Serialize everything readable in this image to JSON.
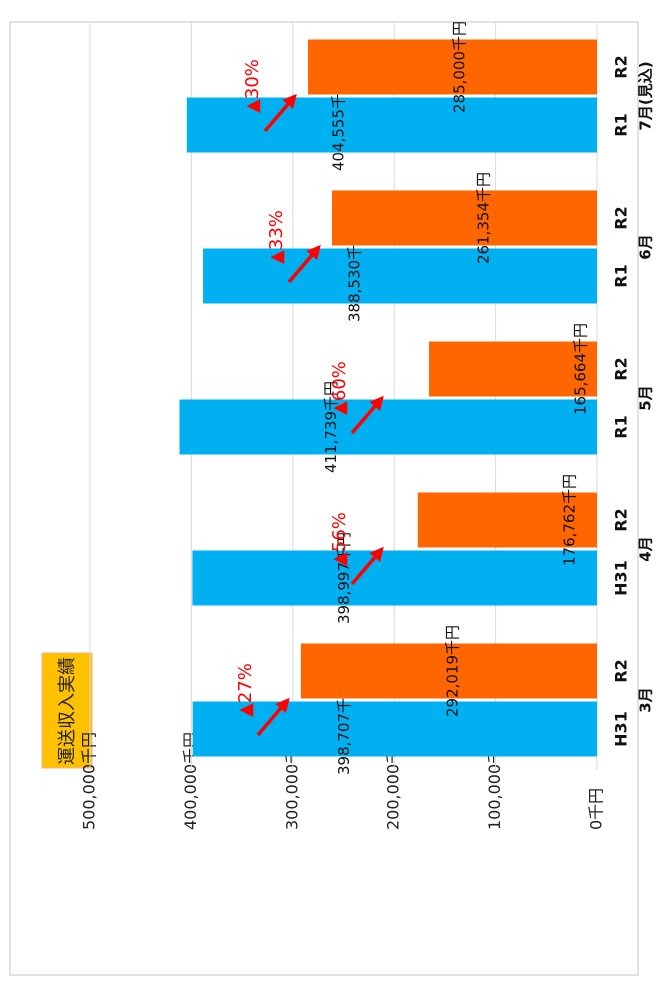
{
  "chart_data": {
    "type": "bar",
    "title": "運送収入実績",
    "categories": [
      "3月",
      "4月",
      "5月",
      "6月",
      "7月(見込)"
    ],
    "sub_labels": [
      [
        "H31",
        "R2"
      ],
      [
        "H31",
        "R2"
      ],
      [
        "R1",
        "R2"
      ],
      [
        "R1",
        "R2"
      ],
      [
        "R1",
        "R2"
      ]
    ],
    "series": [
      {
        "color": "#00b0f0",
        "values": [
          398707,
          398997,
          411739,
          388530,
          404555
        ],
        "value_labels": [
          "398,707千円",
          "398,997千円",
          "411,739千円",
          "388,530千円",
          "404,555千円"
        ]
      },
      {
        "color": "#ff6600",
        "values": [
          292019,
          176762,
          165664,
          261354,
          285000
        ],
        "value_labels": [
          "292,019千円",
          "176,762千円",
          "165,664千円",
          "261,354千円",
          "285,000千円"
        ]
      }
    ],
    "annotations": [
      "▲27%",
      "▲56%",
      "▲60%",
      "▲33%",
      "▲30%"
    ],
    "annotation_color": "#ff0000",
    "ylim": [
      0,
      500000
    ],
    "yticks": [
      {
        "value": 0,
        "label": "0千円"
      },
      {
        "value": 100000,
        "label": "100,000千円"
      },
      {
        "value": 200000,
        "label": "200,000千円"
      },
      {
        "value": 300000,
        "label": "300,000千円"
      },
      {
        "value": 400000,
        "label": "400,000千円"
      },
      {
        "value": 500000,
        "label": "500,000千円"
      }
    ],
    "grid": true
  }
}
